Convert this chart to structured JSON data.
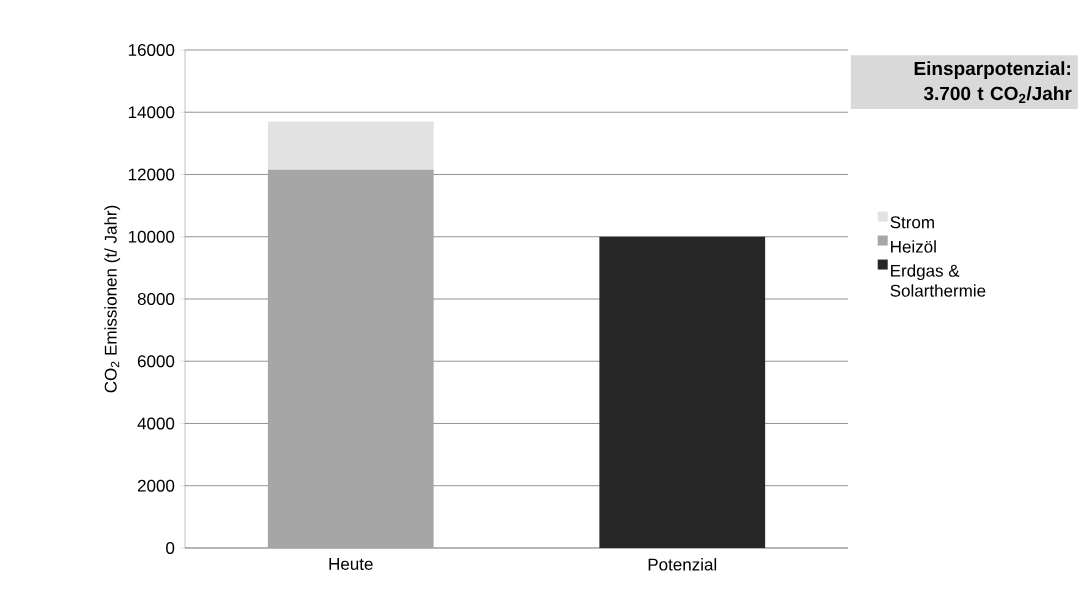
{
  "chart_data": {
    "type": "bar",
    "stacked": true,
    "categories": [
      "Heute",
      "Potenzial"
    ],
    "series": [
      {
        "name": "Erdgas & Solarthermie",
        "color": "#262626",
        "values": [
          0,
          10000
        ]
      },
      {
        "name": "Heizöl",
        "color": "#a6a6a6",
        "values": [
          12150,
          0
        ]
      },
      {
        "name": "Strom",
        "color": "#e2e2e2",
        "values": [
          1550,
          0
        ]
      }
    ],
    "ylabel": "CO$_{2}$ Emissionen (t/ Jahr)",
    "ylim": [
      0,
      16000
    ],
    "yticks": [
      0,
      2000,
      4000,
      6000,
      8000,
      10000,
      12000,
      14000,
      16000
    ],
    "grid": "y",
    "legend": "right",
    "annotations": [
      "Einsparpotenzial: 3.700 t CO$_{2}$/Jahr"
    ]
  }
}
